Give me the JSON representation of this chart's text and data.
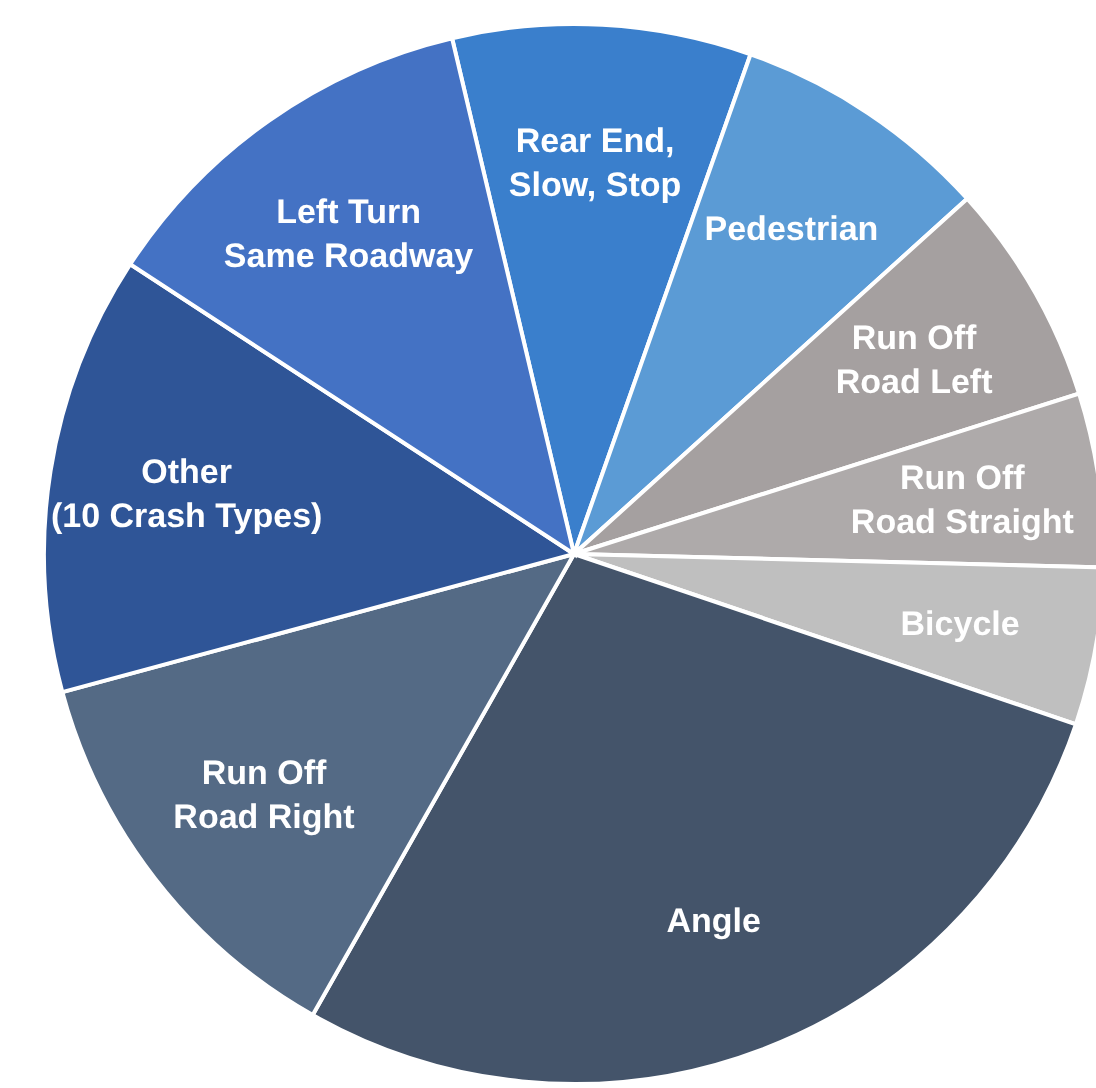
{
  "chart_data": {
    "type": "pie",
    "categories": [
      "Rear End, Slow, Stop",
      "Pedestrian",
      "Run Off Road Left",
      "Run Off Road Straight",
      "Bicycle",
      "Angle",
      "Run Off Road Right",
      "Other (10 Crash Types)",
      "Left Turn Same Roadway"
    ],
    "values": [
      9.1,
      7.9,
      6.8,
      5.3,
      4.8,
      28.0,
      12.6,
      13.4,
      12.1
    ],
    "colors": [
      "#3a7fcc",
      "#5b9bd5",
      "#a5a0a0",
      "#aeaaaa",
      "#bfbfbf",
      "#44546a",
      "#546a85",
      "#2f5597",
      "#4472c4"
    ],
    "legend": false
  }
}
